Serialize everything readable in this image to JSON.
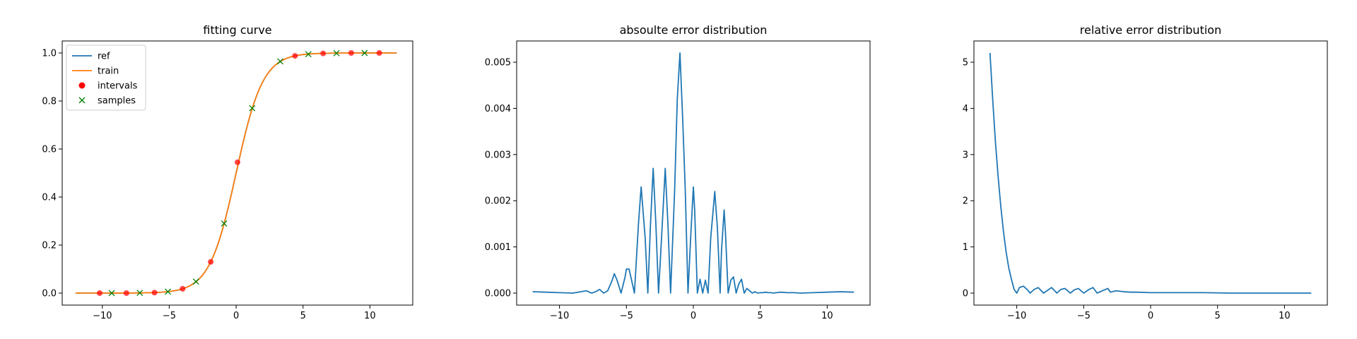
{
  "chart_data": [
    {
      "type": "line",
      "title": "fitting curve",
      "xlabel": "",
      "ylabel": "",
      "xlim": [
        -13,
        13.2
      ],
      "ylim": [
        -0.05,
        1.05
      ],
      "xticks": [
        -10,
        -5,
        0,
        5,
        10
      ],
      "xtick_labels": [
        "−10",
        "−5",
        "0",
        "5",
        "10"
      ],
      "yticks": [
        0.0,
        0.2,
        0.4,
        0.6,
        0.8,
        1.0
      ],
      "ytick_labels": [
        "0.0",
        "0.2",
        "0.4",
        "0.6",
        "0.8",
        "1.0"
      ],
      "legend": {
        "position": "top-left",
        "entries": [
          "ref",
          "train",
          "intervals",
          "samples"
        ]
      },
      "series": [
        {
          "name": "ref",
          "kind": "line",
          "color": "#1f77b4",
          "function": "sigmoid",
          "x_range": [
            -12,
            12
          ]
        },
        {
          "name": "train",
          "kind": "line",
          "color": "#ff7f0e",
          "function": "sigmoid",
          "x_range": [
            -12,
            12
          ]
        },
        {
          "name": "intervals",
          "kind": "marker",
          "marker": "circle",
          "color": "#ff0000",
          "x": [
            -10.2,
            -8.2,
            -6.1,
            -4.0,
            -1.9,
            0.1,
            4.4,
            6.5,
            8.6,
            10.7
          ],
          "y": [
            0.0,
            0.0,
            0.002,
            0.018,
            0.13,
            0.545,
            0.988,
            0.998,
            1.0,
            1.0
          ]
        },
        {
          "name": "samples",
          "kind": "marker",
          "marker": "x",
          "color": "#008000",
          "x": [
            -9.3,
            -7.2,
            -5.1,
            -3.0,
            -0.9,
            1.2,
            3.3,
            5.4,
            7.5,
            9.6
          ],
          "y": [
            0.0,
            0.001,
            0.006,
            0.048,
            0.29,
            0.77,
            0.965,
            0.995,
            0.999,
            1.0
          ]
        }
      ]
    },
    {
      "type": "line",
      "title": "absoulte error distribution",
      "xlabel": "",
      "ylabel": "",
      "xlim": [
        -13.2,
        13.2
      ],
      "ylim": [
        -0.00026,
        0.00546
      ],
      "xticks": [
        -10,
        -5,
        0,
        5,
        10
      ],
      "xtick_labels": [
        "−10",
        "−5",
        "0",
        "5",
        "10"
      ],
      "yticks": [
        0.0,
        0.001,
        0.002,
        0.003,
        0.004,
        0.005
      ],
      "ytick_labels": [
        "0.000",
        "0.001",
        "0.002",
        "0.003",
        "0.004",
        "0.005"
      ],
      "series": [
        {
          "color": "#1f77b4",
          "x": [
            -12.0,
            -11.0,
            -10.0,
            -9.0,
            -8.0,
            -7.6,
            -7.3,
            -7.0,
            -6.7,
            -6.4,
            -6.1,
            -5.9,
            -5.7,
            -5.4,
            -5.1,
            -5.0,
            -4.8,
            -4.4,
            -4.1,
            -3.9,
            -3.6,
            -3.4,
            -3.2,
            -3.0,
            -2.8,
            -2.6,
            -2.3,
            -2.1,
            -1.9,
            -1.7,
            -1.4,
            -1.2,
            -1.0,
            -0.8,
            -0.6,
            -0.4,
            -0.2,
            0.0,
            0.1,
            0.3,
            0.5,
            0.7,
            0.9,
            1.1,
            1.3,
            1.6,
            1.8,
            2.0,
            2.1,
            2.3,
            2.4,
            2.6,
            2.8,
            3.0,
            3.2,
            3.4,
            3.6,
            3.8,
            4.0,
            4.2,
            4.4,
            4.6,
            4.8,
            5.0,
            5.2,
            5.4,
            5.6,
            5.8,
            6.0,
            6.2,
            6.5,
            7.0,
            7.5,
            8.0,
            9.0,
            10.0,
            11.0,
            12.0
          ],
          "y": [
            3e-05,
            2e-05,
            1e-05,
            0.0,
            5e-05,
            0.0,
            3e-05,
            8e-05,
            0.0,
            5e-05,
            0.00025,
            0.00042,
            0.00028,
            0.0,
            0.00035,
            0.00052,
            0.00052,
            0.0,
            0.0015,
            0.0023,
            0.0012,
            0.0,
            0.0015,
            0.0027,
            0.0015,
            0.0,
            0.0016,
            0.0027,
            0.0015,
            0.0,
            0.0022,
            0.0042,
            0.0052,
            0.0038,
            0.0022,
            0.0,
            0.0012,
            0.0023,
            0.0018,
            0.0,
            0.0003,
            0.0,
            0.00028,
            0.0,
            0.0012,
            0.0022,
            0.0014,
            0.0,
            0.0009,
            0.0018,
            0.0013,
            0.0,
            0.00028,
            0.00035,
            0.0,
            0.0002,
            0.0003,
            0.0,
            0.0001,
            5e-05,
            0.0,
            3e-05,
            0.0,
            1e-05,
            1e-05,
            2e-05,
            1e-05,
            1e-05,
            0.0,
            1e-05,
            2e-05,
            1e-05,
            1e-05,
            0.0,
            1e-05,
            2e-05,
            3e-05,
            2e-05
          ]
        }
      ]
    },
    {
      "type": "line",
      "title": "relative error distribution",
      "xlabel": "",
      "ylabel": "",
      "xlim": [
        -13.2,
        13.2
      ],
      "ylim": [
        -0.26,
        5.46
      ],
      "xticks": [
        -10,
        -5,
        0,
        5,
        10
      ],
      "xtick_labels": [
        "−10",
        "−5",
        "0",
        "5",
        "10"
      ],
      "yticks": [
        0,
        1,
        2,
        3,
        4,
        5
      ],
      "ytick_labels": [
        "0",
        "1",
        "2",
        "3",
        "4",
        "5"
      ],
      "series": [
        {
          "color": "#1f77b4",
          "x": [
            -12.0,
            -11.8,
            -11.6,
            -11.4,
            -11.2,
            -11.0,
            -10.8,
            -10.6,
            -10.4,
            -10.2,
            -10.0,
            -9.8,
            -9.5,
            -9.2,
            -9.0,
            -8.7,
            -8.4,
            -8.0,
            -7.7,
            -7.4,
            -7.0,
            -6.7,
            -6.4,
            -6.0,
            -5.7,
            -5.4,
            -5.0,
            -4.6,
            -4.3,
            -4.0,
            -3.6,
            -3.2,
            -3.0,
            -2.6,
            -2.0,
            -1.5,
            -1.0,
            0.0,
            1.0,
            2.0,
            4.0,
            6.0,
            8.0,
            10.0,
            12.0
          ],
          "y": [
            5.2,
            4.2,
            3.3,
            2.55,
            1.9,
            1.35,
            0.9,
            0.55,
            0.3,
            0.08,
            0.0,
            0.12,
            0.15,
            0.07,
            0.0,
            0.08,
            0.12,
            0.0,
            0.06,
            0.12,
            0.0,
            0.08,
            0.1,
            0.0,
            0.07,
            0.1,
            0.0,
            0.08,
            0.12,
            0.0,
            0.05,
            0.1,
            0.02,
            0.05,
            0.03,
            0.02,
            0.02,
            0.01,
            0.01,
            0.01,
            0.01,
            0.0,
            0.0,
            0.0,
            0.0
          ]
        }
      ]
    }
  ]
}
